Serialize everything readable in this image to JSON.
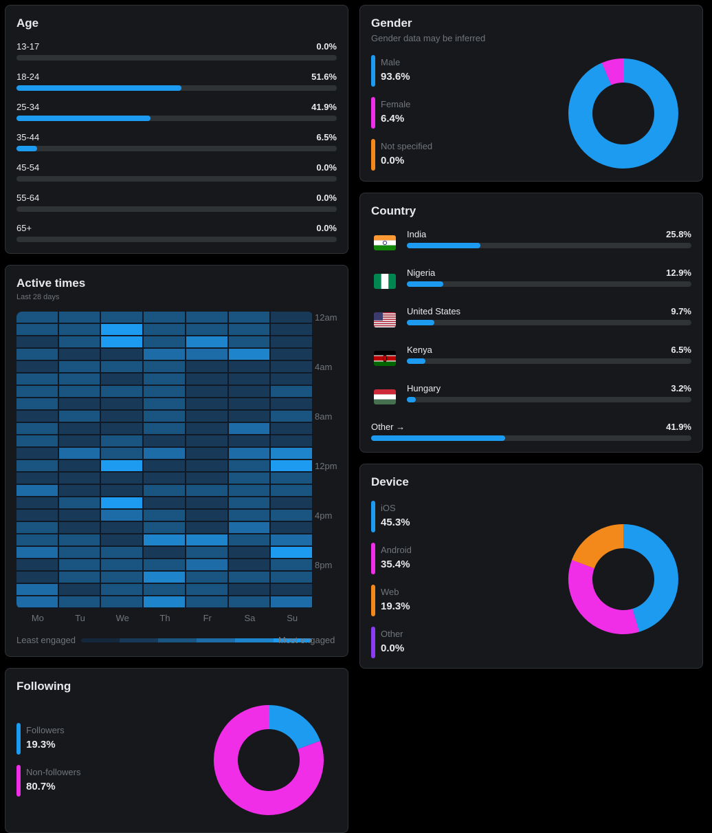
{
  "age": {
    "title": "Age",
    "rows": [
      {
        "label": "13-17",
        "value": "0.0%",
        "pct": 0.0
      },
      {
        "label": "18-24",
        "value": "51.6%",
        "pct": 51.6
      },
      {
        "label": "25-34",
        "value": "41.9%",
        "pct": 41.9
      },
      {
        "label": "35-44",
        "value": "6.5%",
        "pct": 6.5
      },
      {
        "label": "45-54",
        "value": "0.0%",
        "pct": 0.0
      },
      {
        "label": "55-64",
        "value": "0.0%",
        "pct": 0.0
      },
      {
        "label": "65+",
        "value": "0.0%",
        "pct": 0.0
      }
    ]
  },
  "gender": {
    "title": "Gender",
    "subtitle": "Gender data may be inferred",
    "items": [
      {
        "label": "Male",
        "value": "93.6%",
        "pct": 93.6,
        "color": "#1d9bf0"
      },
      {
        "label": "Female",
        "value": "6.4%",
        "pct": 6.4,
        "color": "#f02ee8"
      },
      {
        "label": "Not specified",
        "value": "0.0%",
        "pct": 0.0,
        "color": "#f4891b"
      }
    ]
  },
  "country": {
    "title": "Country",
    "rows": [
      {
        "name": "India",
        "value": "25.8%",
        "pct": 25.8,
        "flag": "india-flag-icon"
      },
      {
        "name": "Nigeria",
        "value": "12.9%",
        "pct": 12.9,
        "flag": "nigeria-flag-icon"
      },
      {
        "name": "United States",
        "value": "9.7%",
        "pct": 9.7,
        "flag": "usa-flag-icon"
      },
      {
        "name": "Kenya",
        "value": "6.5%",
        "pct": 6.5,
        "flag": "kenya-flag-icon"
      },
      {
        "name": "Hungary",
        "value": "3.2%",
        "pct": 3.2,
        "flag": "hungary-flag-icon"
      }
    ],
    "other": {
      "label": "Other →",
      "value": "41.9%",
      "pct": 41.9
    }
  },
  "active_times": {
    "title": "Active times",
    "subtitle": "Last 28 days",
    "days": [
      "Mo",
      "Tu",
      "We",
      "Th",
      "Fr",
      "Sa",
      "Su"
    ],
    "time_labels": [
      "12am",
      "4am",
      "8am",
      "12pm",
      "4pm",
      "8pm"
    ],
    "least_label": "Least engaged",
    "most_label": "Most engaged",
    "scale_colors": [
      "#15273a",
      "#183a58",
      "#1a5480",
      "#1d6ca8",
      "#1e84cc",
      "#1d9bf0"
    ],
    "grid": [
      [
        2,
        2,
        2,
        2,
        2,
        2,
        1
      ],
      [
        2,
        2,
        5,
        2,
        2,
        2,
        1
      ],
      [
        1,
        2,
        5,
        2,
        4,
        2,
        1
      ],
      [
        2,
        1,
        1,
        3,
        3,
        4,
        1
      ],
      [
        1,
        2,
        2,
        2,
        1,
        1,
        1
      ],
      [
        2,
        2,
        1,
        2,
        1,
        1,
        1
      ],
      [
        2,
        2,
        2,
        2,
        1,
        1,
        2
      ],
      [
        2,
        1,
        1,
        2,
        1,
        1,
        1
      ],
      [
        1,
        2,
        1,
        2,
        1,
        1,
        2
      ],
      [
        2,
        1,
        1,
        2,
        1,
        3,
        1
      ],
      [
        2,
        1,
        2,
        1,
        1,
        1,
        1
      ],
      [
        1,
        3,
        2,
        3,
        1,
        3,
        4
      ],
      [
        2,
        1,
        5,
        1,
        1,
        2,
        5
      ],
      [
        1,
        1,
        1,
        1,
        1,
        2,
        2
      ],
      [
        3,
        1,
        1,
        2,
        2,
        2,
        2
      ],
      [
        1,
        2,
        5,
        1,
        1,
        2,
        1
      ],
      [
        1,
        1,
        3,
        2,
        1,
        2,
        2
      ],
      [
        2,
        1,
        1,
        2,
        1,
        3,
        1
      ],
      [
        2,
        2,
        1,
        4,
        4,
        2,
        3
      ],
      [
        3,
        2,
        2,
        1,
        2,
        1,
        5
      ],
      [
        1,
        2,
        2,
        2,
        3,
        1,
        2
      ],
      [
        1,
        2,
        2,
        4,
        2,
        2,
        2
      ],
      [
        3,
        1,
        2,
        2,
        2,
        1,
        1
      ],
      [
        3,
        2,
        2,
        4,
        2,
        2,
        3
      ]
    ]
  },
  "device": {
    "title": "Device",
    "items": [
      {
        "label": "iOS",
        "value": "45.3%",
        "pct": 45.3,
        "color": "#1d9bf0"
      },
      {
        "label": "Android",
        "value": "35.4%",
        "pct": 35.4,
        "color": "#f02ee8"
      },
      {
        "label": "Web",
        "value": "19.3%",
        "pct": 19.3,
        "color": "#f4891b"
      },
      {
        "label": "Other",
        "value": "0.0%",
        "pct": 0.0,
        "color": "#8c3cf0"
      }
    ]
  },
  "following": {
    "title": "Following",
    "items": [
      {
        "label": "Followers",
        "value": "19.3%",
        "pct": 19.3,
        "color": "#1d9bf0"
      },
      {
        "label": "Non-followers",
        "value": "80.7%",
        "pct": 80.7,
        "color": "#f02ee8"
      }
    ]
  }
}
